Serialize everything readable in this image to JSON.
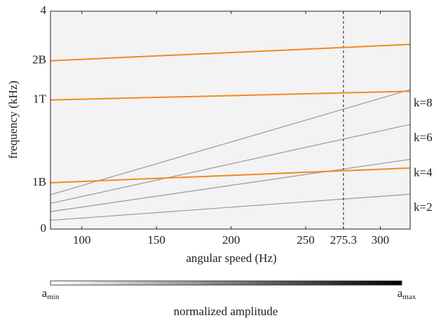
{
  "chart_data": {
    "type": "line",
    "x_label": "angular speed (Hz)",
    "y_label": "frequency (kHz)",
    "xlim": [
      79,
      320
    ],
    "ylim": [
      0,
      4
    ],
    "xticks": [
      100,
      150,
      200,
      250,
      275.3,
      300
    ],
    "yticks": [
      0,
      4
    ],
    "series": [
      {
        "name": "2B",
        "color": "#f28a1d",
        "x": [
          79,
          320
        ],
        "values": [
          3.09,
          3.39
        ]
      },
      {
        "name": "1T",
        "color": "#f28a1d",
        "x": [
          79,
          320
        ],
        "values": [
          2.37,
          2.53
        ]
      },
      {
        "name": "1B",
        "color": "#f28a1d",
        "x": [
          79,
          320
        ],
        "values": [
          0.85,
          1.12
        ]
      }
    ],
    "harmonics": [
      {
        "name": "k=8",
        "color": "#9a9a9a",
        "x": [
          79,
          320
        ],
        "values": [
          0.63,
          2.56
        ]
      },
      {
        "name": "k=6",
        "color": "#9a9a9a",
        "x": [
          79,
          320
        ],
        "values": [
          0.47,
          1.92
        ]
      },
      {
        "name": "k=4",
        "color": "#9a9a9a",
        "x": [
          79,
          320
        ],
        "values": [
          0.32,
          1.28
        ]
      },
      {
        "name": "k=2",
        "color": "#9a9a9a",
        "x": [
          79,
          320
        ],
        "values": [
          0.16,
          0.64
        ]
      }
    ],
    "vline": {
      "x": 275.3
    },
    "colorbar": {
      "label": "normalized amplitude",
      "min_label": {
        "base": "a",
        "sub": "min"
      },
      "max_label": {
        "base": "a",
        "sub": "max"
      }
    }
  }
}
